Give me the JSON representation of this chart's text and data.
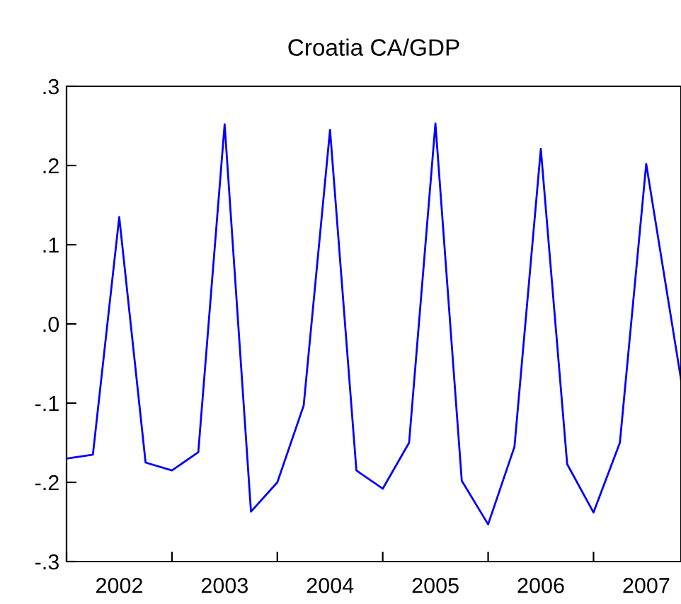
{
  "chart_data": {
    "type": "line",
    "title": "Croatia CA/GDP",
    "x": [
      2002,
      2002.25,
      2002.5,
      2002.75,
      2003,
      2003.25,
      2003.5,
      2003.75,
      2004,
      2004.25,
      2004.5,
      2004.75,
      2005,
      2005.25,
      2005.5,
      2005.75,
      2006,
      2006.25,
      2006.5,
      2006.75,
      2007,
      2007.25,
      2007.5,
      2007.83
    ],
    "series": [
      {
        "color": "#0000ff",
        "values": [
          -0.17,
          -0.165,
          0.135,
          -0.175,
          -0.185,
          -0.162,
          0.252,
          -0.237,
          -0.2,
          -0.103,
          0.245,
          -0.185,
          -0.208,
          -0.15,
          0.253,
          -0.198,
          -0.253,
          -0.155,
          0.221,
          -0.177,
          -0.238,
          -0.15,
          0.202,
          -0.07
        ]
      }
    ],
    "xlim": [
      2002,
      2007.83
    ],
    "xticks": [
      {
        "value": 2002,
        "label": null
      },
      {
        "value": 2002.5,
        "label": "2002"
      },
      {
        "value": 2003,
        "label": null
      },
      {
        "value": 2003.5,
        "label": "2003"
      },
      {
        "value": 2004,
        "label": null
      },
      {
        "value": 2004.5,
        "label": "2004"
      },
      {
        "value": 2005,
        "label": null
      },
      {
        "value": 2005.5,
        "label": "2005"
      },
      {
        "value": 2006,
        "label": null
      },
      {
        "value": 2006.5,
        "label": "2006"
      },
      {
        "value": 2007,
        "label": null
      },
      {
        "value": 2007.5,
        "label": "2007"
      }
    ],
    "ylim": [
      -0.3,
      0.3
    ],
    "yticks": [
      {
        "value": -0.3,
        "label": "-.3"
      },
      {
        "value": -0.2,
        "label": "-.2"
      },
      {
        "value": -0.1,
        "label": "-.1"
      },
      {
        "value": 0.0,
        "label": ".0"
      },
      {
        "value": 0.1,
        "label": ".1"
      },
      {
        "value": 0.2,
        "label": ".2"
      },
      {
        "value": 0.3,
        "label": ".3"
      }
    ],
    "grid": false,
    "line_style": "solid"
  }
}
